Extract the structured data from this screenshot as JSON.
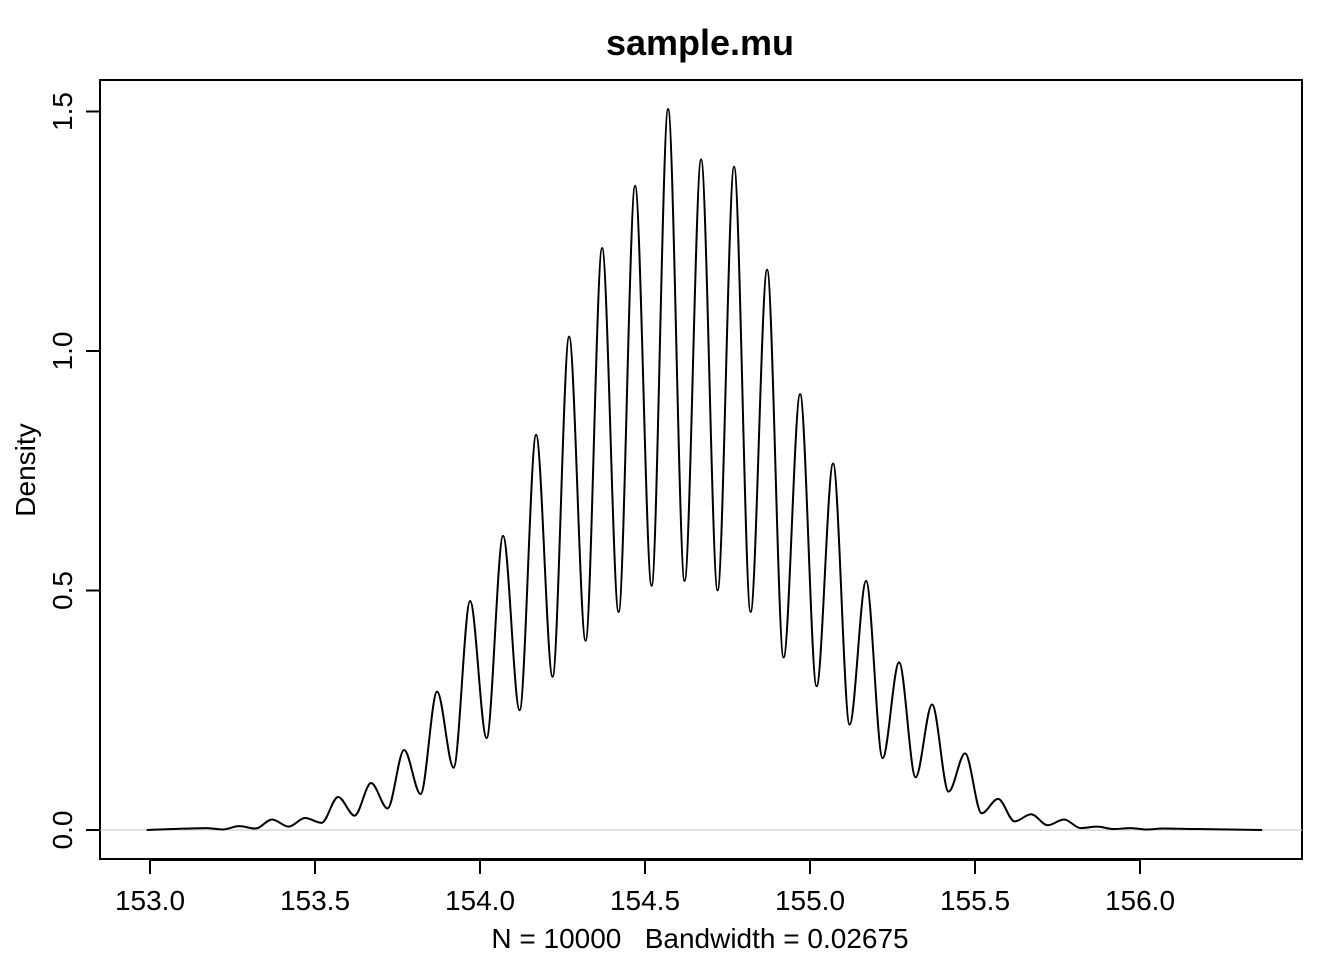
{
  "chart_data": {
    "type": "line",
    "title": "sample.mu",
    "xlabel": "N = 10000   Bandwidth = 0.02675",
    "ylabel": "Density",
    "xlim": [
      152.98,
      156.38
    ],
    "ylim": [
      0.0,
      1.5
    ],
    "x_ticks": [
      153.0,
      153.5,
      154.0,
      154.5,
      155.0,
      155.5,
      156.0
    ],
    "x_tick_labels": [
      "153.0",
      "153.5",
      "154.0",
      "154.5",
      "155.0",
      "155.5",
      "156.0"
    ],
    "y_ticks": [
      0.0,
      0.5,
      1.0,
      1.5
    ],
    "y_tick_labels": [
      "0.0",
      "0.5",
      "1.0",
      "1.5"
    ],
    "grid": false,
    "zero_line": true,
    "line_color": "#000000",
    "series": [
      {
        "x": [
          152.99,
          153.07,
          153.17,
          153.22,
          153.27,
          153.32,
          153.37,
          153.42,
          153.47,
          153.52,
          153.57,
          153.62,
          153.67,
          153.72,
          153.77,
          153.82,
          153.87,
          153.92,
          153.97,
          154.02,
          154.07,
          154.12,
          154.17,
          154.22,
          154.27,
          154.32,
          154.37,
          154.42,
          154.47,
          154.52,
          154.57,
          154.62,
          154.67,
          154.72,
          154.77,
          154.82,
          154.87,
          154.92,
          154.97,
          155.02,
          155.07,
          155.12,
          155.17,
          155.22,
          155.27,
          155.32,
          155.37,
          155.42,
          155.47,
          155.52,
          155.57,
          155.62,
          155.67,
          155.72,
          155.77,
          155.82,
          155.87,
          155.92,
          155.97,
          156.02,
          156.07,
          156.17,
          156.27,
          156.37
        ],
        "y": [
          0.0,
          0.002,
          0.004,
          0.001,
          0.008,
          0.003,
          0.022,
          0.007,
          0.025,
          0.015,
          0.069,
          0.03,
          0.098,
          0.045,
          0.167,
          0.075,
          0.289,
          0.13,
          0.478,
          0.192,
          0.614,
          0.25,
          0.825,
          0.32,
          1.03,
          0.395,
          1.215,
          0.455,
          1.345,
          0.51,
          1.505,
          0.52,
          1.4,
          0.5,
          1.385,
          0.455,
          1.17,
          0.36,
          0.91,
          0.3,
          0.765,
          0.22,
          0.52,
          0.15,
          0.35,
          0.11,
          0.262,
          0.08,
          0.16,
          0.035,
          0.065,
          0.018,
          0.033,
          0.01,
          0.022,
          0.004,
          0.007,
          0.002,
          0.004,
          0.001,
          0.003,
          0.002,
          0.001,
          0.0
        ]
      }
    ]
  }
}
